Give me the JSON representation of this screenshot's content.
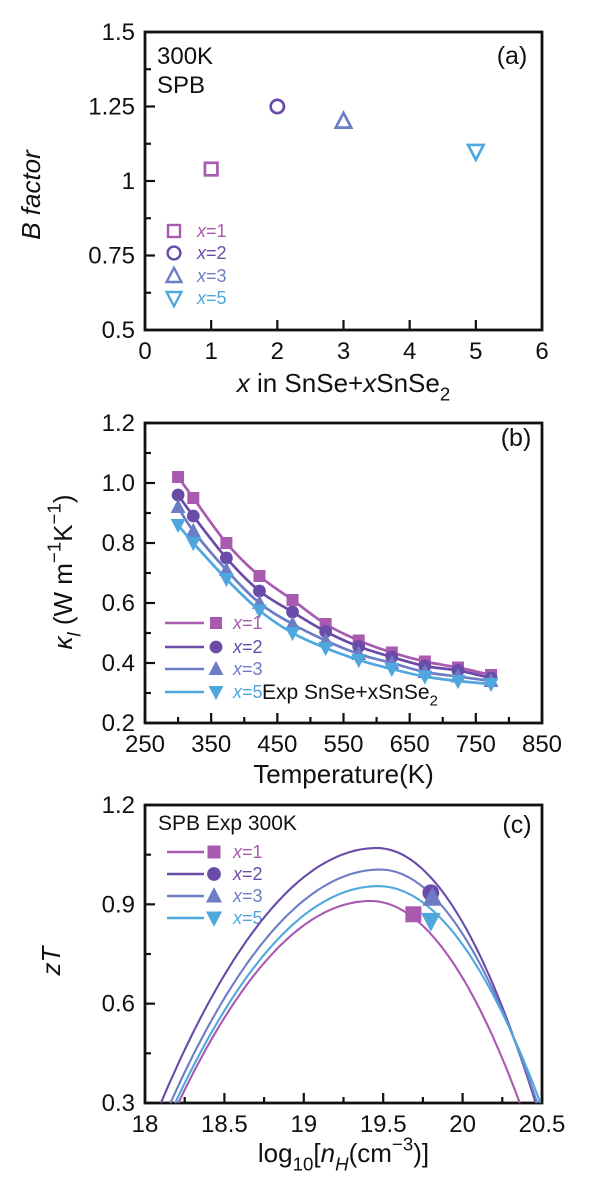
{
  "figure": {
    "background": "#ffffff",
    "axis_color": "#111111",
    "palette": {
      "x1": "#a85ab0",
      "x2": "#6a4ba8",
      "x3": "#6d7dc5",
      "x5": "#4fa7de"
    },
    "markers": {
      "x1": "square",
      "x2": "circle",
      "x3": "triangle-up",
      "x5": "triangle-down"
    },
    "legend_labels": {
      "x1": "*x*=1",
      "x2": "*x*=2",
      "x3": "*x*=3",
      "x5": "*x*=5"
    }
  },
  "chart_data": [
    {
      "panel": "a",
      "type": "scatter",
      "panel_label": "(a)",
      "annotation": [
        "300K",
        "SPB"
      ],
      "xlabel": "*x* in SnSe+*x*SnSe_{2}",
      "ylabel": "*B factor*",
      "xlim": [
        0,
        6
      ],
      "ylim": [
        0.5,
        1.5
      ],
      "xticks": [
        {
          "v": 0,
          "label": "0"
        },
        {
          "v": 1,
          "label": "1"
        },
        {
          "v": 2,
          "label": "2"
        },
        {
          "v": 3,
          "label": "3"
        },
        {
          "v": 4,
          "label": "4"
        },
        {
          "v": 5,
          "label": "5"
        },
        {
          "v": 6,
          "label": "6"
        }
      ],
      "xminor": [],
      "yticks": [
        {
          "v": 0.5,
          "label": "0.5"
        },
        {
          "v": 0.75,
          "label": "0.75"
        },
        {
          "v": 1,
          "label": "1"
        },
        {
          "v": 1.25,
          "label": "1.25"
        },
        {
          "v": 1.5,
          "label": "1.5"
        }
      ],
      "yminor": [
        0.625,
        0.875,
        1.125,
        1.375
      ],
      "marker_fill": "open",
      "legend_order": [
        "x1",
        "x2",
        "x3",
        "x5"
      ],
      "points": [
        {
          "series": "x1",
          "x": 1,
          "y": 1.04
        },
        {
          "series": "x2",
          "x": 2,
          "y": 1.25
        },
        {
          "series": "x3",
          "x": 3,
          "y": 1.2
        },
        {
          "series": "x5",
          "x": 5,
          "y": 1.1
        }
      ]
    },
    {
      "panel": "b",
      "type": "line",
      "panel_label": "(b)",
      "xlabel": "Temperature(K)",
      "ylabel": "*κ*_{*l*} (W m^{−1}K^{−1})",
      "xlim": [
        250,
        850
      ],
      "ylim": [
        0.2,
        1.2
      ],
      "xticks": [
        {
          "v": 250,
          "label": "250"
        },
        {
          "v": 350,
          "label": "350"
        },
        {
          "v": 450,
          "label": "450"
        },
        {
          "v": 550,
          "label": "550"
        },
        {
          "v": 650,
          "label": "650"
        },
        {
          "v": 750,
          "label": "750"
        },
        {
          "v": 850,
          "label": "850"
        }
      ],
      "xminor": [
        300,
        400,
        500,
        600,
        700,
        800
      ],
      "yticks": [
        {
          "v": 0.2,
          "label": "0.2"
        },
        {
          "v": 0.4,
          "label": "0.4"
        },
        {
          "v": 0.6,
          "label": "0.6"
        },
        {
          "v": 0.8,
          "label": "0.8"
        },
        {
          "v": 1.0,
          "label": "1.0"
        },
        {
          "v": 1.2,
          "label": "1.2"
        }
      ],
      "yminor": [
        0.3,
        0.5,
        0.7,
        0.9,
        1.1
      ],
      "marker_fill": "solid",
      "legend_order": [
        "x1",
        "x2",
        "x3",
        "x5"
      ],
      "extra_legend_text": "Exp SnSe+xSnSe_{2}",
      "temperatures": [
        300,
        323,
        373,
        423,
        473,
        523,
        573,
        623,
        673,
        723,
        773
      ],
      "series": [
        {
          "name": "x1",
          "values": [
            1.02,
            0.95,
            0.8,
            0.69,
            0.61,
            0.53,
            0.475,
            0.435,
            0.405,
            0.385,
            0.36
          ]
        },
        {
          "name": "x2",
          "values": [
            0.96,
            0.89,
            0.75,
            0.64,
            0.57,
            0.505,
            0.455,
            0.42,
            0.39,
            0.375,
            0.35
          ]
        },
        {
          "name": "x3",
          "values": [
            0.92,
            0.84,
            0.71,
            0.6,
            0.53,
            0.475,
            0.43,
            0.4,
            0.37,
            0.355,
            0.34
          ]
        },
        {
          "name": "x5",
          "values": [
            0.86,
            0.8,
            0.68,
            0.575,
            0.5,
            0.45,
            0.41,
            0.38,
            0.355,
            0.34,
            0.33
          ]
        }
      ]
    },
    {
      "panel": "c",
      "type": "line",
      "panel_label": "(c)",
      "legend_title": "SPB Exp 300K",
      "xlabel": "log_{10}[*n*_{*H*}(cm^{−3})]",
      "ylabel": "*zT*",
      "xlim": [
        18,
        20.5
      ],
      "ylim": [
        0.3,
        1.2
      ],
      "xticks": [
        {
          "v": 18,
          "label": "18"
        },
        {
          "v": 18.5,
          "label": "18.5"
        },
        {
          "v": 19,
          "label": "19"
        },
        {
          "v": 19.5,
          "label": "19.5"
        },
        {
          "v": 20,
          "label": "20"
        },
        {
          "v": 20.5,
          "label": "20.5"
        }
      ],
      "xminor": [
        18.25,
        18.75,
        19.25,
        19.75,
        20.25
      ],
      "yticks": [
        {
          "v": 0.3,
          "label": "0.3"
        },
        {
          "v": 0.6,
          "label": "0.6"
        },
        {
          "v": 0.9,
          "label": "0.9"
        },
        {
          "v": 1.2,
          "label": "1.2"
        }
      ],
      "yminor": [
        0.45,
        0.75,
        1.05
      ],
      "legend_order": [
        "x1",
        "x2",
        "x3",
        "x5"
      ],
      "curves": [
        {
          "name": "x1",
          "left_x": 18.21,
          "peak_x": 19.42,
          "peak_zt": 0.91,
          "right_x": 20.36
        },
        {
          "name": "x2",
          "left_x": 18.1,
          "peak_x": 19.46,
          "peak_zt": 1.07,
          "right_x": 20.46
        },
        {
          "name": "x3",
          "left_x": 18.16,
          "peak_x": 19.48,
          "peak_zt": 1.005,
          "right_x": 20.47
        },
        {
          "name": "x5",
          "left_x": 18.19,
          "peak_x": 19.47,
          "peak_zt": 0.955,
          "right_x": 20.49
        }
      ],
      "exp_points": [
        {
          "series": "x1",
          "x": 19.69,
          "y": 0.87
        },
        {
          "series": "x2",
          "x": 19.8,
          "y": 0.935
        },
        {
          "series": "x3",
          "x": 19.81,
          "y": 0.92
        },
        {
          "series": "x5",
          "x": 19.8,
          "y": 0.85
        }
      ]
    }
  ]
}
